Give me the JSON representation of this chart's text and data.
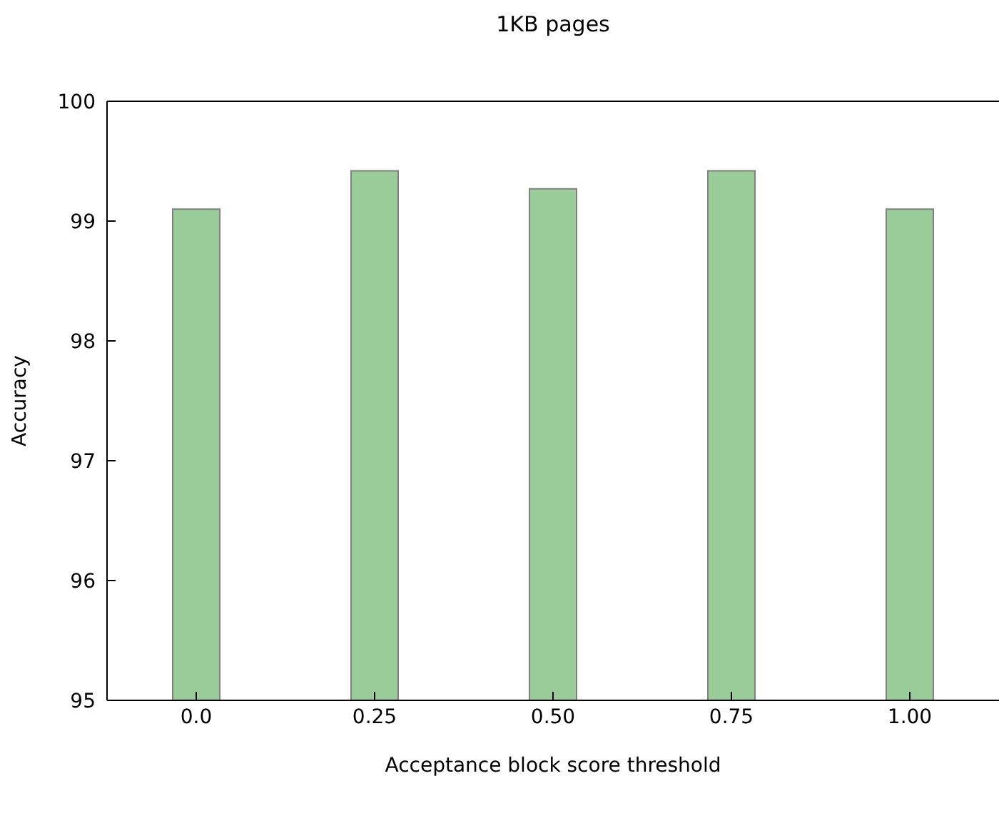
{
  "chart_data": {
    "type": "bar",
    "title": "1KB pages",
    "xlabel": "Acceptance block score threshold",
    "ylabel": "Accuracy",
    "categories": [
      "0.0",
      "0.25",
      "0.50",
      "0.75",
      "1.00"
    ],
    "values": [
      99.1,
      99.42,
      99.27,
      99.42,
      99.1
    ],
    "color": "#99cc99",
    "ylim": [
      95,
      100
    ],
    "yticks": [
      95,
      96,
      97,
      98,
      99,
      100
    ],
    "grid": false
  }
}
